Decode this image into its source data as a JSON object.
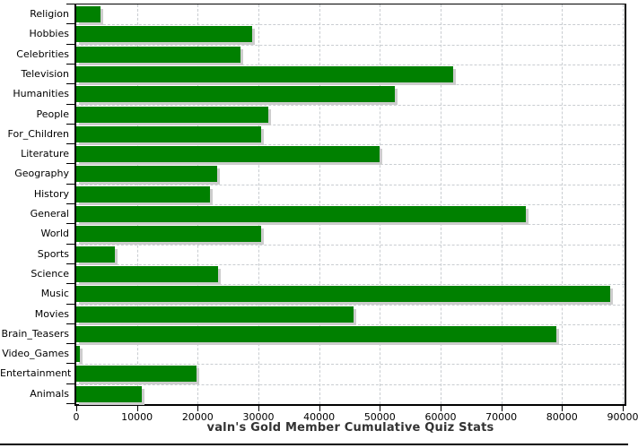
{
  "chart_data": {
    "type": "bar",
    "orientation": "horizontal",
    "title": "valn's Gold Member Cumulative Quiz Stats",
    "categories": [
      "Religion",
      "Hobbies",
      "Celebrities",
      "Television",
      "Humanities",
      "People",
      "For_Children",
      "Literature",
      "Geography",
      "History",
      "General",
      "World",
      "Sports",
      "Science",
      "Music",
      "Movies",
      "Brain_Teasers",
      "Video_Games",
      "Entertainment",
      "Animals"
    ],
    "values": [
      4000,
      29000,
      27000,
      62000,
      52500,
      31600,
      30500,
      50000,
      23200,
      22000,
      74000,
      30400,
      6400,
      23400,
      88000,
      45600,
      79000,
      600,
      19800,
      10800
    ],
    "xlabel": "",
    "ylabel": "",
    "xlim": [
      0,
      90000
    ],
    "x_ticks": [
      0,
      10000,
      20000,
      30000,
      40000,
      50000,
      60000,
      70000,
      80000,
      90000
    ],
    "grid": true,
    "legend": false
  },
  "colors": {
    "bar": "#008000",
    "bar_shadow": "#cdcdcd",
    "gridline": "#c9cdd1",
    "axis": "#000000",
    "title_text": "#333333",
    "background": "#ffffff"
  }
}
